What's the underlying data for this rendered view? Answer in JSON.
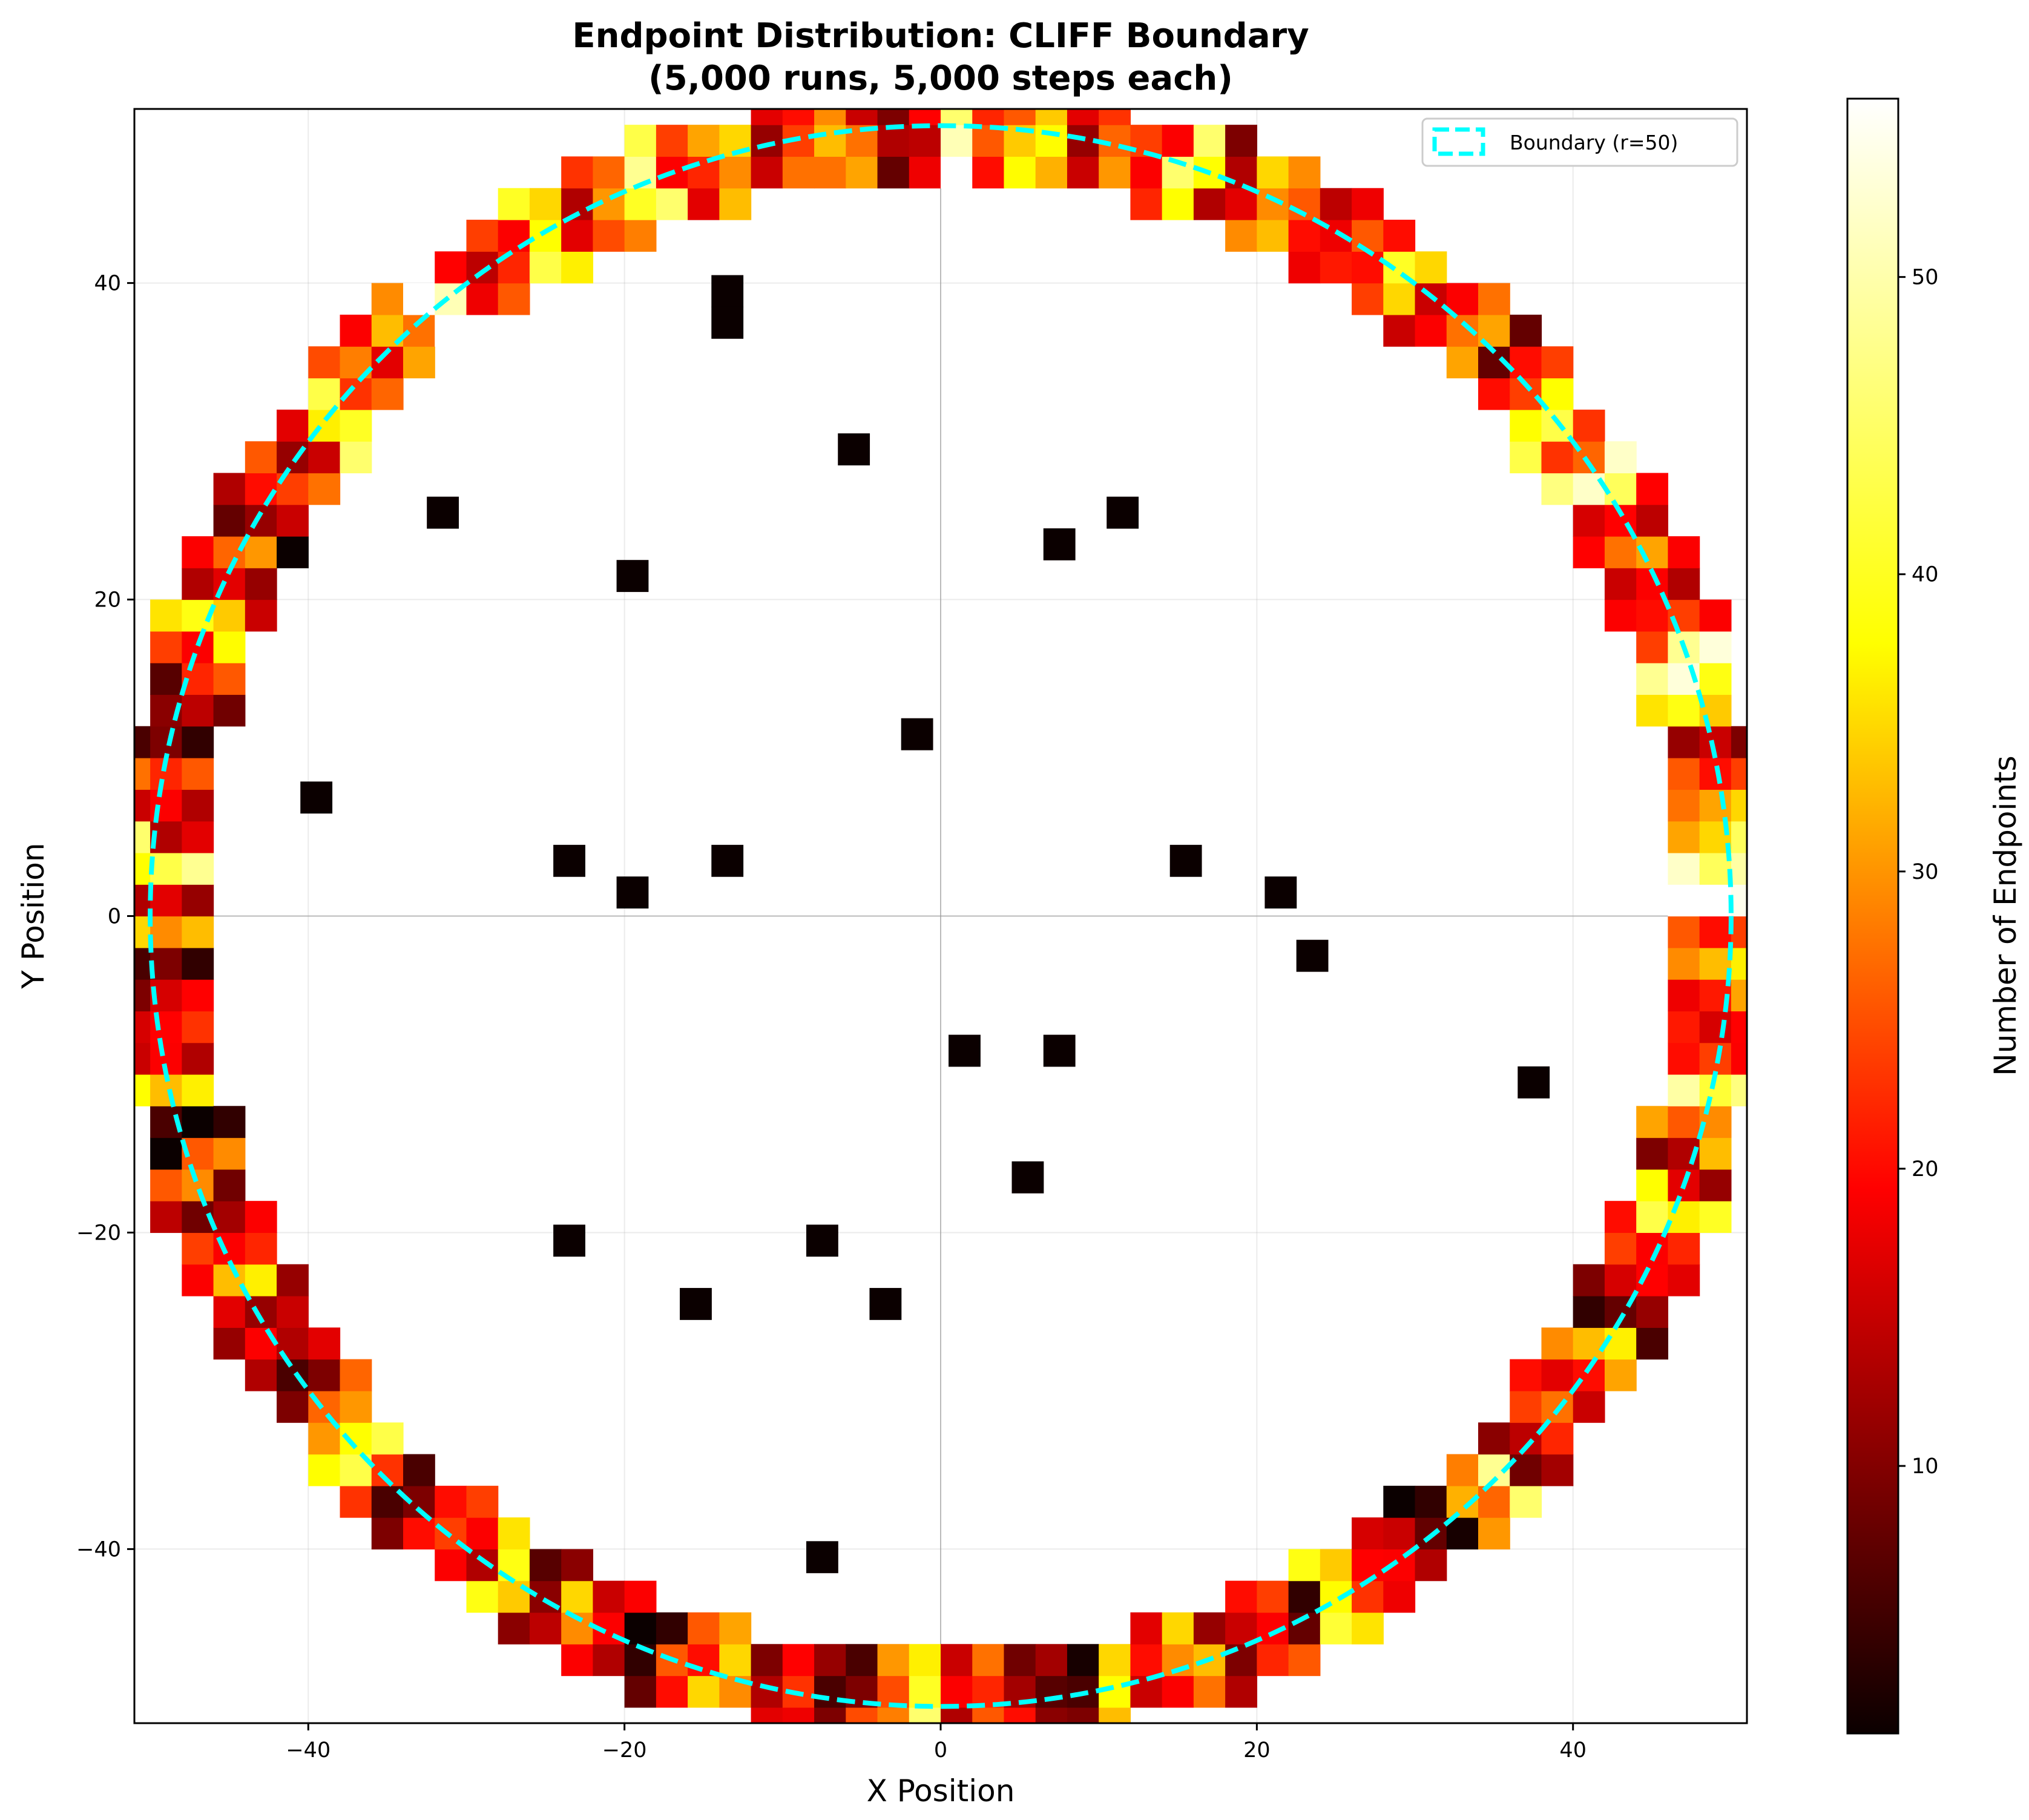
{
  "chart_data": {
    "type": "heatmap",
    "title": "Endpoint Distribution: CLIFF Boundary",
    "subtitle": "(5,000 runs, 5,000 steps each)",
    "xlabel": "X Position",
    "ylabel": "Y Position",
    "colorbar_label": "Number of Endpoints",
    "colormap": "hot",
    "xlim": [
      -51,
      51
    ],
    "ylim": [
      -51,
      51
    ],
    "xticks": [
      -40,
      -20,
      0,
      20,
      40
    ],
    "yticks": [
      -40,
      -20,
      0,
      20,
      40
    ],
    "color_range": [
      1,
      56
    ],
    "colorbar_ticks": [
      10,
      20,
      30,
      40,
      50
    ],
    "bin_size": 2,
    "grid": true,
    "zero_lines": true,
    "legend": {
      "position": "top-right",
      "entries": [
        {
          "label": "Boundary (r=50)",
          "style": "dashed",
          "color": "#00ffff"
        }
      ]
    },
    "boundary_radius": 50,
    "interior_points": [
      [
        -13.5,
        39.5
      ],
      [
        -13.5,
        37.5
      ],
      [
        -5.5,
        29.5
      ],
      [
        -31.5,
        25.5
      ],
      [
        11.5,
        25.5
      ],
      [
        7.5,
        23.5
      ],
      [
        -19.5,
        21.5
      ],
      [
        -1.5,
        11.5
      ],
      [
        -39.5,
        7.5
      ],
      [
        -23.5,
        3.5
      ],
      [
        -13.5,
        3.5
      ],
      [
        15.5,
        3.5
      ],
      [
        -19.5,
        1.5
      ],
      [
        21.5,
        1.5
      ],
      [
        23.5,
        -2.5
      ],
      [
        1.5,
        -8.5
      ],
      [
        7.5,
        -8.5
      ],
      [
        37.5,
        -10.5
      ],
      [
        5.5,
        -16.5
      ],
      [
        -23.5,
        -20.5
      ],
      [
        -7.5,
        -20.5
      ],
      [
        -15.5,
        -24.5
      ],
      [
        -3.5,
        -24.5
      ],
      [
        -7.5,
        -40.5
      ]
    ],
    "interior_point_value": 1,
    "ring_counts_from_angle_0": [
      55,
      45,
      30,
      22,
      10,
      35,
      50,
      20,
      12,
      30,
      15,
      45,
      25,
      40,
      18,
      8,
      28,
      12,
      38,
      20,
      15,
      22,
      30,
      10,
      42,
      18,
      25,
      12,
      35,
      20,
      48,
      15,
      8,
      28,
      22,
      12,
      32,
      18,
      42,
      25,
      10,
      38,
      20,
      15,
      52,
      30,
      18,
      25,
      40,
      12,
      22,
      8,
      35,
      20,
      45,
      28,
      15,
      10,
      30,
      22,
      50,
      18,
      38,
      12,
      25,
      20,
      42,
      8,
      32,
      15,
      28,
      40,
      18,
      22,
      10,
      35,
      50,
      25,
      12,
      30,
      20,
      45,
      15,
      38,
      22,
      8,
      28,
      40,
      18,
      25,
      12,
      35,
      48,
      20,
      30,
      15,
      10,
      42,
      22,
      38,
      18,
      28,
      12,
      45,
      25,
      20,
      8,
      35,
      50,
      15,
      30,
      22,
      40,
      12,
      25,
      18,
      38,
      10,
      28,
      45,
      20,
      15,
      32,
      22
    ]
  }
}
